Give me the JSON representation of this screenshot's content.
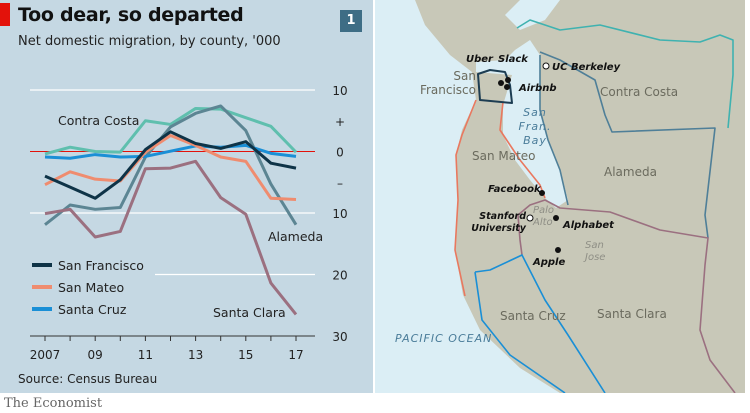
{
  "header": {
    "title": "Too dear, so departed",
    "subtitle": "Net domestic migration, by county, '000",
    "chart_number": "1"
  },
  "source": "Source: Census Bureau",
  "brand": "The Economist",
  "chart_data": {
    "type": "line",
    "title": "Too dear, so departed",
    "subtitle": "Net domestic migration, by county, '000",
    "x": [
      2007,
      2008,
      2009,
      2010,
      2011,
      2012,
      2013,
      2014,
      2015,
      2016,
      2017
    ],
    "x_tick_labels": [
      "2007",
      "09",
      "11",
      "13",
      "15",
      "17"
    ],
    "x_tick_values": [
      2007,
      2009,
      2011,
      2013,
      2015,
      2017
    ],
    "y_tick_labels": [
      "10",
      "+",
      "0",
      "–",
      "10",
      "20",
      "30"
    ],
    "y_tick_values": [
      10,
      5,
      0,
      -5,
      -10,
      -20,
      -30
    ],
    "ylim": [
      -30,
      10
    ],
    "y_axis_note": "negative values plotted downward, labels show magnitude",
    "grid": true,
    "series": [
      {
        "name": "Contra Costa",
        "color": "#5fbfae",
        "values": [
          -0.4,
          0.7,
          0,
          -0.1,
          5.0,
          4.4,
          7.0,
          6.9,
          5.5,
          4.1,
          -0.1
        ],
        "label_style": "direct"
      },
      {
        "name": "Alameda",
        "color": "#5c8593",
        "values": [
          -11.9,
          -8.7,
          -9.4,
          -9.1,
          -0.9,
          4.0,
          6.2,
          7.4,
          3.4,
          -5.3,
          -11.9
        ],
        "label_style": "direct"
      },
      {
        "name": "Santa Clara",
        "color": "#9b7080",
        "values": [
          -10.1,
          -9.4,
          -13.9,
          -13.0,
          -2.8,
          -2.7,
          -1.6,
          -7.5,
          -10.2,
          -21.4,
          -26.5
        ],
        "label_style": "direct"
      },
      {
        "name": "Santa Cruz",
        "color": "#1a8fd6",
        "values": [
          -0.9,
          -1.1,
          -0.5,
          -0.9,
          -0.8,
          0.05,
          0.9,
          0.7,
          1.0,
          -0.3,
          -0.8
        ],
        "label_style": "legend"
      },
      {
        "name": "San Mateo",
        "color": "#ef8c6f",
        "values": [
          -5.4,
          -3.3,
          -4.5,
          -4.8,
          -0.1,
          2.6,
          1.0,
          -0.9,
          -1.6,
          -7.6,
          -7.8
        ],
        "label_style": "legend"
      },
      {
        "name": "San Francisco",
        "color": "#0e3347",
        "values": [
          -4.0,
          -5.8,
          -7.6,
          -4.6,
          0.3,
          3.2,
          1.3,
          0.5,
          1.6,
          -1.9,
          -2.7
        ],
        "label_style": "legend"
      }
    ],
    "legend": [
      "San Francisco",
      "San Mateo",
      "Santa Cruz"
    ],
    "legend_placement": "bottom-left"
  },
  "map": {
    "counties": [
      "San Francisco",
      "Contra Costa",
      "San Mateo",
      "Alameda",
      "Santa Clara",
      "Santa Cruz"
    ],
    "water": [
      "San Fran. Bay",
      "PACIFIC OCEAN"
    ],
    "cities": [
      "Palo Alto",
      "San Jose"
    ],
    "companies": [
      "Uber",
      "Slack",
      "Airbnb",
      "Facebook",
      "Alphabet",
      "Apple"
    ],
    "universities": [
      "UC Berkeley",
      "Stanford University"
    ],
    "colors": {
      "water": "#dbeef5",
      "land": "#c8c8b8",
      "sf": "#1d3d52",
      "sanmateo": "#e9785f",
      "santaclara": "#9b7080",
      "santacruz": "#1a8fd6",
      "alameda": "#4f7f98",
      "contracosta": "#3fb2b0"
    }
  }
}
